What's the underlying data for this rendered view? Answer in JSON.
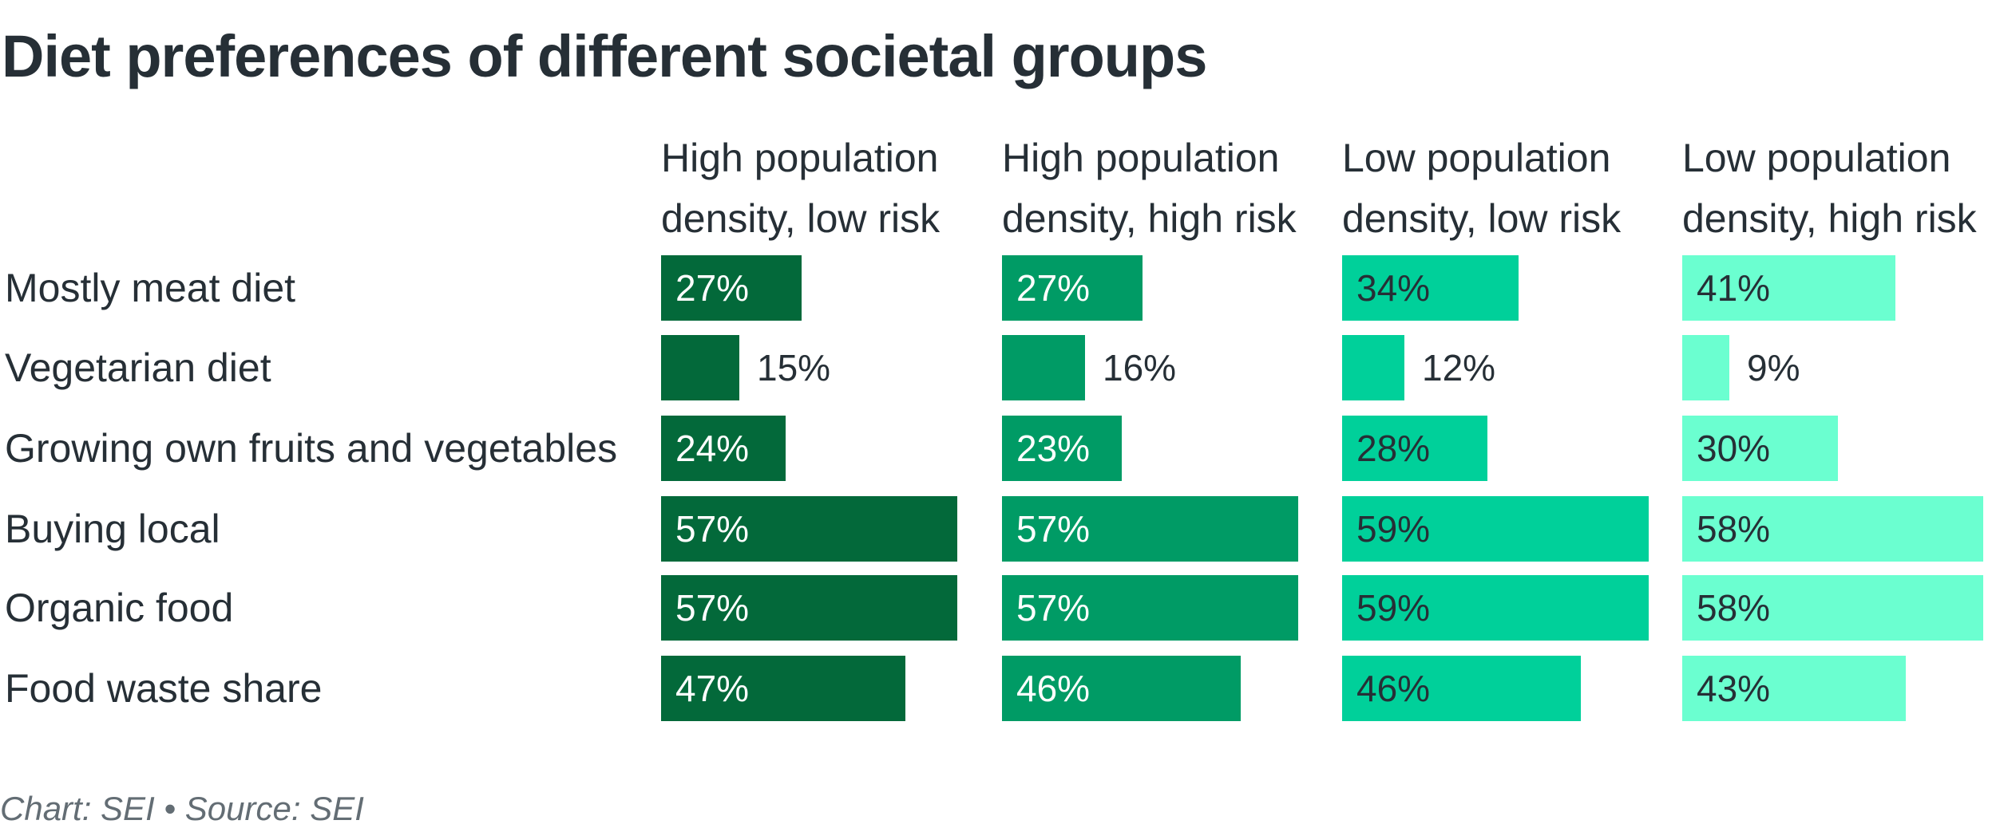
{
  "chart_data": {
    "type": "bar",
    "title": "Diet preferences of different societal groups",
    "categories": [
      "Mostly meat diet",
      "Vegetarian diet",
      "Growing own fruits and vegetables",
      "Buying local",
      "Organic food",
      "Food waste share"
    ],
    "series": [
      {
        "name": "High population density, low risk",
        "name_lines": [
          "High population",
          "density, low risk"
        ],
        "color": "#03693a",
        "label_color": "#ffffff",
        "values": [
          27,
          15,
          24,
          57,
          57,
          47
        ]
      },
      {
        "name": "High population density, high risk",
        "name_lines": [
          "High population",
          "density, high risk"
        ],
        "color": "#009b65",
        "label_color": "#ffffff",
        "values": [
          27,
          16,
          23,
          57,
          57,
          46
        ]
      },
      {
        "name": "Low population density, low risk",
        "name_lines": [
          "Low population",
          "density, low risk"
        ],
        "color": "#00d09a",
        "label_color": "#262f36",
        "values": [
          34,
          12,
          28,
          59,
          59,
          46
        ]
      },
      {
        "name": "Low population density, high risk",
        "name_lines": [
          "Low population",
          "density, high risk"
        ],
        "color": "#6bffd0",
        "label_color": "#262f36",
        "values": [
          41,
          9,
          30,
          58,
          58,
          43
        ]
      }
    ],
    "value_suffix": "%",
    "xlabel": "",
    "ylabel": "",
    "xlim": [
      0,
      60
    ],
    "grid": false,
    "legend": "column headers (top)",
    "layout": "small multiples, one bar panel per group"
  },
  "footer": {
    "text": "Chart: SEI • Source: SEI"
  }
}
